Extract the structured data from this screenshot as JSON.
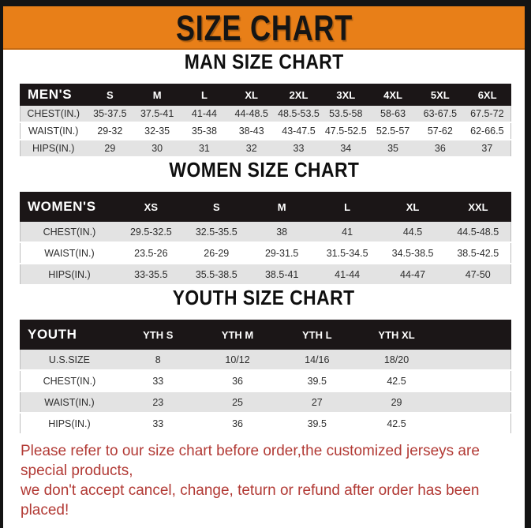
{
  "banner": {
    "title": "SIZE CHART",
    "bg_color": "#E87F18",
    "text_color": "#151515"
  },
  "sections": [
    {
      "heading": "MAN SIZE CHART",
      "table": {
        "header_label": "MEN'S",
        "columns": [
          "S",
          "M",
          "L",
          "XL",
          "2XL",
          "3XL",
          "4XL",
          "5XL",
          "6XL"
        ],
        "rows": [
          {
            "label": "CHEST(IN.)",
            "values": [
              "35-37.5",
              "37.5-41",
              "41-44",
              "44-48.5",
              "48.5-53.5",
              "53.5-58",
              "58-63",
              "63-67.5",
              "67.5-72"
            ]
          },
          {
            "label": "WAIST(IN.)",
            "values": [
              "29-32",
              "32-35",
              "35-38",
              "38-43",
              "43-47.5",
              "47.5-52.5",
              "52.5-57",
              "57-62",
              "62-66.5"
            ]
          },
          {
            "label": "HIPS(IN.)",
            "values": [
              "29",
              "30",
              "31",
              "32",
              "33",
              "34",
              "35",
              "36",
              "37"
            ]
          }
        ]
      }
    },
    {
      "heading": "WOMEN SIZE CHART",
      "table": {
        "header_label": "WOMEN'S",
        "columns": [
          "XS",
          "S",
          "M",
          "L",
          "XL",
          "XXL"
        ],
        "rows": [
          {
            "label": "CHEST(IN.)",
            "values": [
              "29.5-32.5",
              "32.5-35.5",
              "38",
              "41",
              "44.5",
              "44.5-48.5"
            ]
          },
          {
            "label": "WAIST(IN.)",
            "values": [
              "23.5-26",
              "26-29",
              "29-31.5",
              "31.5-34.5",
              "34.5-38.5",
              "38.5-42.5"
            ]
          },
          {
            "label": "HIPS(IN.)",
            "values": [
              "33-35.5",
              "35.5-38.5",
              "38.5-41",
              "41-44",
              "44-47",
              "47-50"
            ]
          }
        ]
      }
    },
    {
      "heading": "YOUTH SIZE CHART",
      "table": {
        "header_label": "YOUTH",
        "columns": [
          "YTH S",
          "YTH M",
          "YTH L",
          "YTH XL"
        ],
        "rows": [
          {
            "label": "U.S.SIZE",
            "values": [
              "8",
              "10/12",
              "14/16",
              "18/20"
            ]
          },
          {
            "label": "CHEST(IN.)",
            "values": [
              "33",
              "36",
              "39.5",
              "42.5"
            ]
          },
          {
            "label": "WAIST(IN.)",
            "values": [
              "23",
              "25",
              "27",
              "29"
            ]
          },
          {
            "label": "HIPS(IN.)",
            "values": [
              "33",
              "36",
              "39.5",
              "42.5"
            ]
          }
        ]
      }
    }
  ],
  "disclaimer": {
    "line1": "Please refer to our size chart before order,the customized jerseys are special products,",
    "line2": "we don't accept cancel, change, teturn or refund after order has been placed!",
    "color": "#b23a35"
  }
}
